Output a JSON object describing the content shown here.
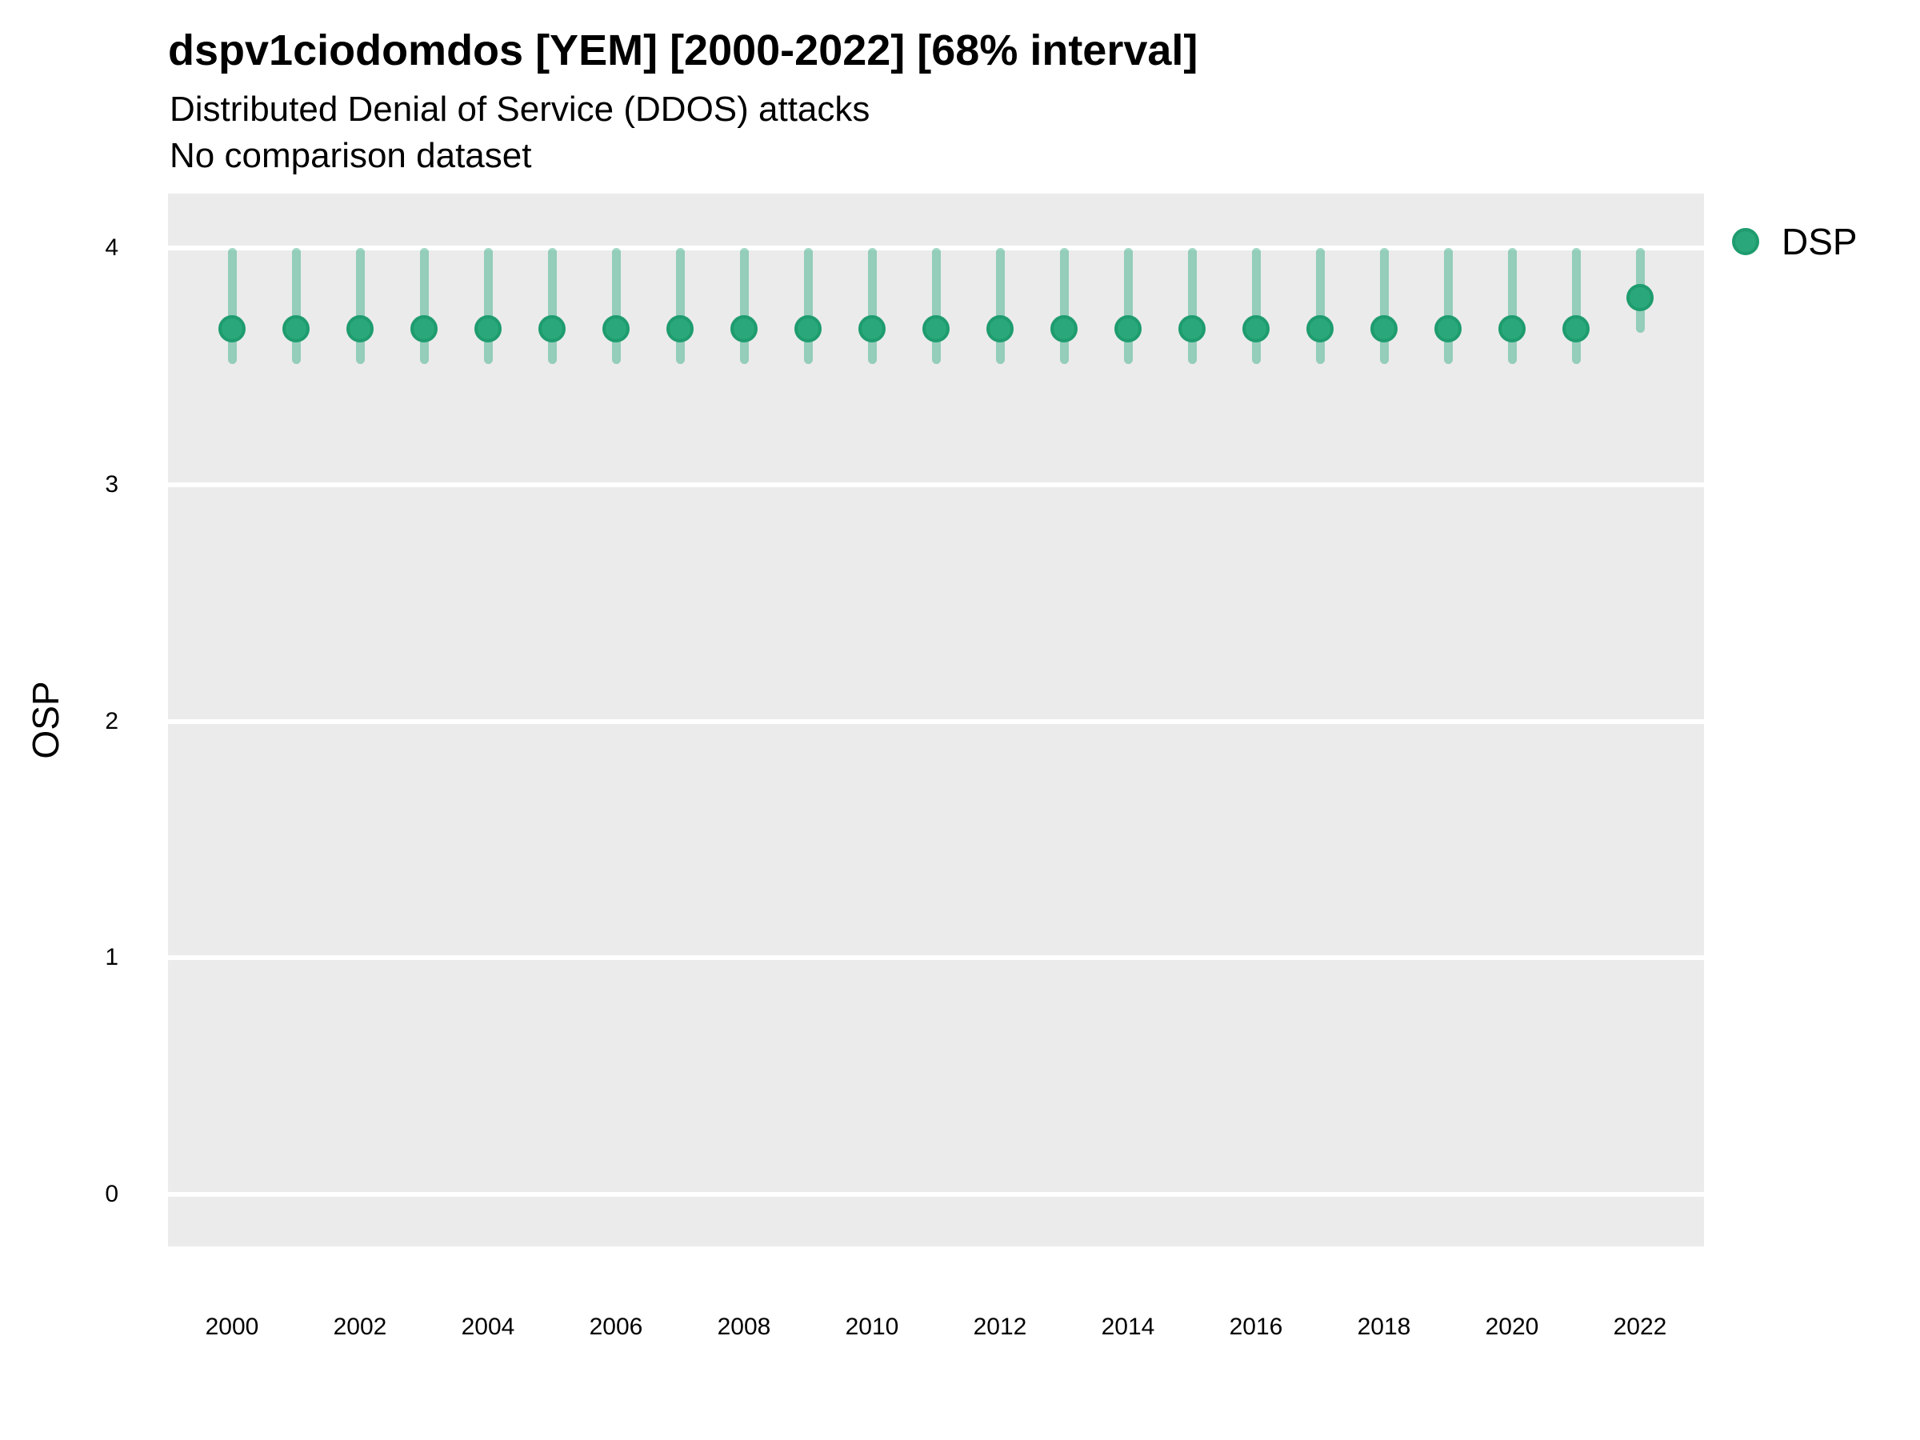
{
  "chart_data": {
    "type": "scatter",
    "subtype": "point-with-interval",
    "title": "dspv1ciodomdos [YEM] [2000-2022] [68% interval]",
    "subtitle": "Distributed Denial of Service (DDOS) attacks",
    "note": "No comparison dataset",
    "xlabel": "",
    "ylabel": "OSP",
    "interval_label": "68% interval",
    "legend_position": "top-right",
    "grid": "horizontal-major-only",
    "x": [
      2000,
      2001,
      2002,
      2003,
      2004,
      2005,
      2006,
      2007,
      2008,
      2009,
      2010,
      2011,
      2012,
      2013,
      2014,
      2015,
      2016,
      2017,
      2018,
      2019,
      2020,
      2021,
      2022
    ],
    "xticks": [
      2000,
      2002,
      2004,
      2006,
      2008,
      2010,
      2012,
      2014,
      2016,
      2018,
      2020,
      2022
    ],
    "yticks": [
      0,
      1,
      2,
      3,
      4
    ],
    "ylim": [
      -0.23,
      4.23
    ],
    "series": [
      {
        "name": "DSP",
        "values": [
          3.66,
          3.66,
          3.66,
          3.66,
          3.66,
          3.66,
          3.66,
          3.66,
          3.66,
          3.66,
          3.66,
          3.66,
          3.66,
          3.66,
          3.66,
          3.66,
          3.66,
          3.66,
          3.66,
          3.66,
          3.66,
          3.66,
          3.79
        ],
        "lower": [
          3.51,
          3.51,
          3.51,
          3.51,
          3.51,
          3.51,
          3.51,
          3.51,
          3.51,
          3.51,
          3.51,
          3.51,
          3.51,
          3.51,
          3.51,
          3.51,
          3.51,
          3.51,
          3.51,
          3.51,
          3.51,
          3.51,
          3.64
        ],
        "upper": [
          4.0,
          4.0,
          4.0,
          4.0,
          4.0,
          4.0,
          4.0,
          4.0,
          4.0,
          4.0,
          4.0,
          4.0,
          4.0,
          4.0,
          4.0,
          4.0,
          4.0,
          4.0,
          4.0,
          4.0,
          4.0,
          4.0,
          4.0
        ]
      }
    ],
    "legend": [
      {
        "label": "DSP",
        "color": "#2aa87c"
      }
    ]
  },
  "colors": {
    "point_fill": "#2aa87c",
    "point_stroke": "#1e9c6e",
    "interval_bar": "rgba(42,168,124,0.45)",
    "panel_bg": "#ebebeb",
    "gridline": "#ffffff",
    "text": "#000000"
  }
}
